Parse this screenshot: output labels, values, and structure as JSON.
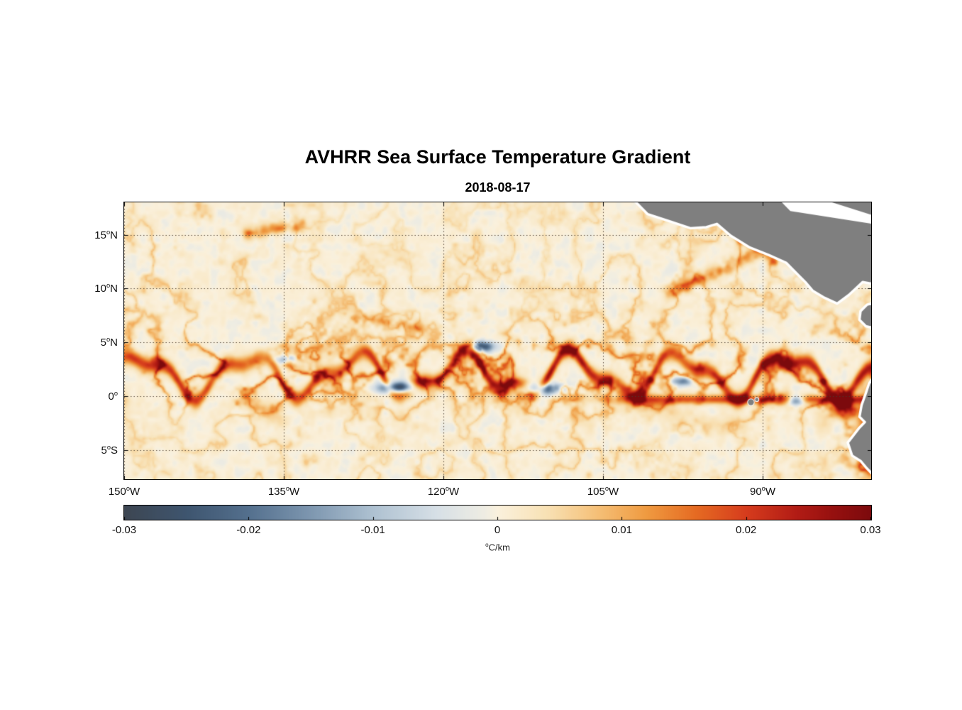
{
  "figure": {
    "title": "AVHRR Sea Surface Temperature Gradient",
    "subtitle": "2018-08-17"
  },
  "chart_data": {
    "type": "heatmap",
    "title": "AVHRR Sea Surface Temperature Gradient",
    "date": "2018-08-17",
    "units": "°C/km",
    "value_range": [
      -0.03,
      0.03
    ],
    "x_axis": {
      "range": [
        -150.0,
        -79.8
      ],
      "ticks": [
        {
          "lon": -150,
          "main": "150",
          "sup": "o",
          "post": "W"
        },
        {
          "lon": -135,
          "main": "135",
          "sup": "o",
          "post": "W"
        },
        {
          "lon": -120,
          "main": "120",
          "sup": "o",
          "post": "W"
        },
        {
          "lon": -105,
          "main": "105",
          "sup": "o",
          "post": "W"
        },
        {
          "lon": -90,
          "main": "90",
          "sup": "o",
          "post": "W"
        }
      ]
    },
    "y_axis": {
      "range": [
        -7.7,
        18.0
      ],
      "ticks": [
        {
          "lat": 15,
          "main": "15",
          "sup": "o",
          "post": "N"
        },
        {
          "lat": 10,
          "main": "10",
          "sup": "o",
          "post": "N"
        },
        {
          "lat": 5,
          "main": "5",
          "sup": "o",
          "post": "N"
        },
        {
          "lat": 0,
          "main": "0",
          "sup": "o",
          "post": ""
        },
        {
          "lat": -5,
          "main": "5",
          "sup": "o",
          "post": "S"
        }
      ]
    },
    "colorbar": {
      "min": -0.03,
      "max": 0.03,
      "unit_sup": "o",
      "unit_text": "C/km",
      "ticks": [
        {
          "v": -0.03,
          "label": "-0.03"
        },
        {
          "v": -0.02,
          "label": "-0.02"
        },
        {
          "v": -0.01,
          "label": "-0.01"
        },
        {
          "v": 0,
          "label": "0"
        },
        {
          "v": 0.01,
          "label": "0.01"
        },
        {
          "v": 0.02,
          "label": "0.02"
        },
        {
          "v": 0.03,
          "label": "0.03"
        }
      ],
      "stops": [
        {
          "v": -0.03,
          "c": "#3D4652"
        },
        {
          "v": -0.025,
          "c": "#3E556F"
        },
        {
          "v": -0.02,
          "c": "#54708E"
        },
        {
          "v": -0.015,
          "c": "#7E97B0"
        },
        {
          "v": -0.01,
          "c": "#AEC1D1"
        },
        {
          "v": -0.005,
          "c": "#D6DFE6"
        },
        {
          "v": -0.001,
          "c": "#EFEDE3"
        },
        {
          "v": 0.0,
          "c": "#FAF1DD"
        },
        {
          "v": 0.004,
          "c": "#F8E1B4"
        },
        {
          "v": 0.008,
          "c": "#F5C078"
        },
        {
          "v": 0.012,
          "c": "#EF9A40"
        },
        {
          "v": 0.016,
          "c": "#E56A22"
        },
        {
          "v": 0.02,
          "c": "#D63C1D"
        },
        {
          "v": 0.024,
          "c": "#B21C15"
        },
        {
          "v": 0.027,
          "c": "#96100F"
        },
        {
          "v": 0.03,
          "c": "#7C0A0D"
        }
      ]
    },
    "map": {
      "land_color": "#7F7F7F",
      "coast_color": "#FFFFFF",
      "grid_color": "#4A3C2E",
      "land": [
        [
          [
            -102.5,
            18.6
          ],
          [
            -79.0,
            18.6
          ],
          [
            -79.0,
            10.3
          ],
          [
            -80.6,
            10.6
          ],
          [
            -81.9,
            9.4
          ],
          [
            -83.0,
            8.6
          ],
          [
            -84.3,
            9.2
          ],
          [
            -85.3,
            9.8
          ],
          [
            -85.9,
            10.5
          ],
          [
            -86.8,
            11.4
          ],
          [
            -87.8,
            12.4
          ],
          [
            -89.4,
            13.1
          ],
          [
            -91.2,
            13.8
          ],
          [
            -93.0,
            14.9
          ],
          [
            -94.3,
            16.0
          ],
          [
            -95.3,
            15.7
          ],
          [
            -96.8,
            15.6
          ],
          [
            -98.6,
            16.2
          ],
          [
            -100.8,
            16.9
          ]
        ],
        [
          [
            -79.0,
            8.8
          ],
          [
            -80.2,
            8.5
          ],
          [
            -80.8,
            7.9
          ],
          [
            -80.9,
            7.1
          ],
          [
            -80.3,
            6.5
          ],
          [
            -79.0,
            6.2
          ]
        ],
        [
          [
            -79.0,
            2.5
          ],
          [
            -80.0,
            1.2
          ],
          [
            -80.3,
            0.3
          ],
          [
            -80.7,
            -0.8
          ],
          [
            -80.9,
            -1.9
          ],
          [
            -80.4,
            -2.4
          ],
          [
            -80.9,
            -2.9
          ],
          [
            -82.0,
            -4.3
          ],
          [
            -81.6,
            -5.5
          ],
          [
            -80.8,
            -6.0
          ],
          [
            -80.2,
            -6.7
          ],
          [
            -79.6,
            -7.3
          ],
          [
            -79.0,
            -8.4
          ]
        ]
      ],
      "sea_overlays": [
        [
          [
            -88.8,
            18.6
          ],
          [
            -85.4,
            18.6
          ],
          [
            -79.0,
            16.6
          ],
          [
            -79.0,
            15.9
          ],
          [
            -87.4,
            17.2
          ]
        ]
      ],
      "islands": [
        {
          "lon": -91.1,
          "lat": -0.55,
          "r": 0.28
        },
        {
          "lon": -90.55,
          "lat": -0.3,
          "r": 0.16
        }
      ]
    },
    "field": {
      "seed": 7,
      "front_description": "Strong meandering SST-gradient front (tropical instability waves) between 0 and 5 N across the basin, intensifying toward the South American coast",
      "neg_blobs": [
        {
          "lon": -124.2,
          "lat": 0.8,
          "rx": 1.7,
          "ry": 0.5,
          "a": 0.034
        },
        {
          "lon": -111.2,
          "lat": 0.7,
          "rx": 2.3,
          "ry": 0.55,
          "a": 0.03
        },
        {
          "lon": -116.4,
          "lat": 4.6,
          "rx": 1.1,
          "ry": 0.5,
          "a": 0.03
        },
        {
          "lon": -97.6,
          "lat": 1.4,
          "rx": 1.2,
          "ry": 0.45,
          "a": 0.018
        },
        {
          "lon": -86.9,
          "lat": -0.4,
          "rx": 0.8,
          "ry": 0.45,
          "a": 0.034
        },
        {
          "lon": -134.7,
          "lat": 3.4,
          "rx": 0.9,
          "ry": 0.4,
          "a": 0.016
        }
      ],
      "streaks": [
        {
          "lon1": -138.2,
          "lat1": 15.1,
          "lon2": -133.6,
          "lat2": 16.0,
          "w": 0.55,
          "a": 0.018
        },
        {
          "lon1": -98.6,
          "lat1": 9.6,
          "lon2": -90.0,
          "lat2": 13.6,
          "w": 0.6,
          "a": 0.017
        },
        {
          "lon1": -92.0,
          "lat1": 14.6,
          "lon2": -89.0,
          "lat2": 12.6,
          "w": 0.5,
          "a": 0.014
        },
        {
          "lon1": -128.0,
          "lat1": 7.3,
          "lon2": -122.5,
          "lat2": 6.3,
          "w": 0.5,
          "a": 0.012
        }
      ],
      "features": [
        "pale cream background with weak orange filament mottling everywhere",
        "dark negative (blue) patches embedded in the equatorial front near 124W, 116W, 111W and 87W",
        "intense gradient line along the equator east of 105W reaching the coast",
        "coastal upwelling front along Ecuador/Peru coast, darkest red near 82W 1.5S",
        "gray land: Mexico/Central America top right, South America bottom right, Galapagos islands near 91W"
      ]
    }
  }
}
